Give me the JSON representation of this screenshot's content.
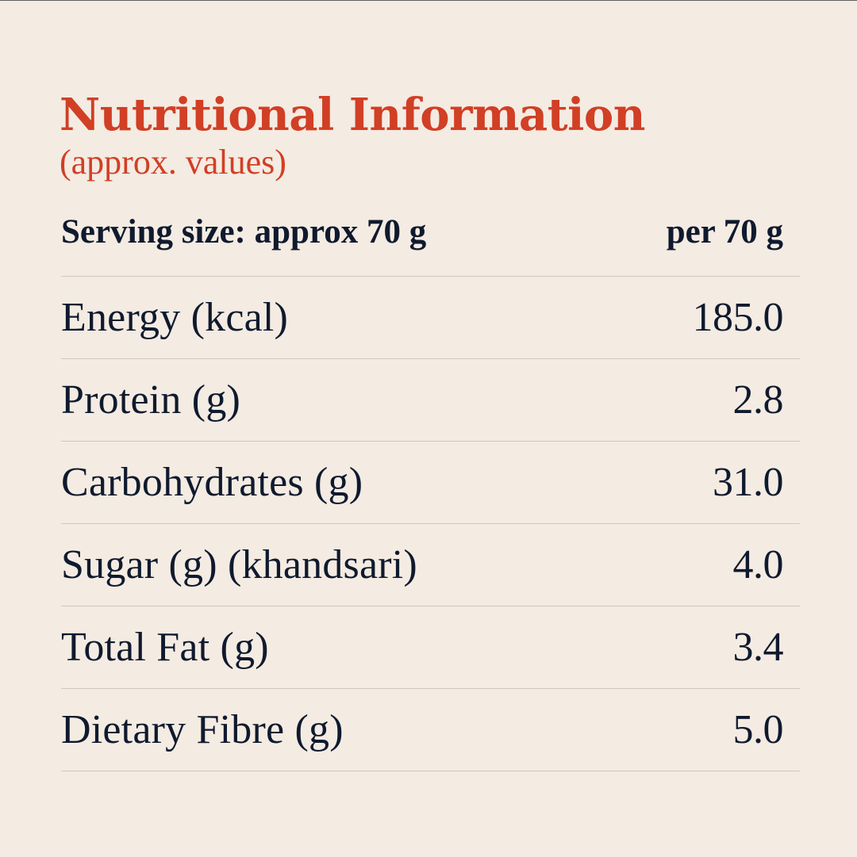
{
  "title": "Nutritional Information",
  "subtitle": "(approx. values)",
  "serving": {
    "label": "Serving size: approx 70 g",
    "column_header": "per 70 g"
  },
  "rows": [
    {
      "label": "Energy (kcal)",
      "value": "185.0"
    },
    {
      "label": "Protein (g)",
      "value": "2.8"
    },
    {
      "label": "Carbohydrates (g)",
      "value": "31.0"
    },
    {
      "label": "Sugar (g) (khandsari)",
      "value": "4.0"
    },
    {
      "label": "Total Fat (g)",
      "value": "3.4"
    },
    {
      "label": "Dietary Fibre (g)",
      "value": "5.0"
    }
  ],
  "colors": {
    "background": "#f4ebe2",
    "accent": "#d13f25",
    "text": "#0f1a2e",
    "divider": "#cfc8c0"
  }
}
